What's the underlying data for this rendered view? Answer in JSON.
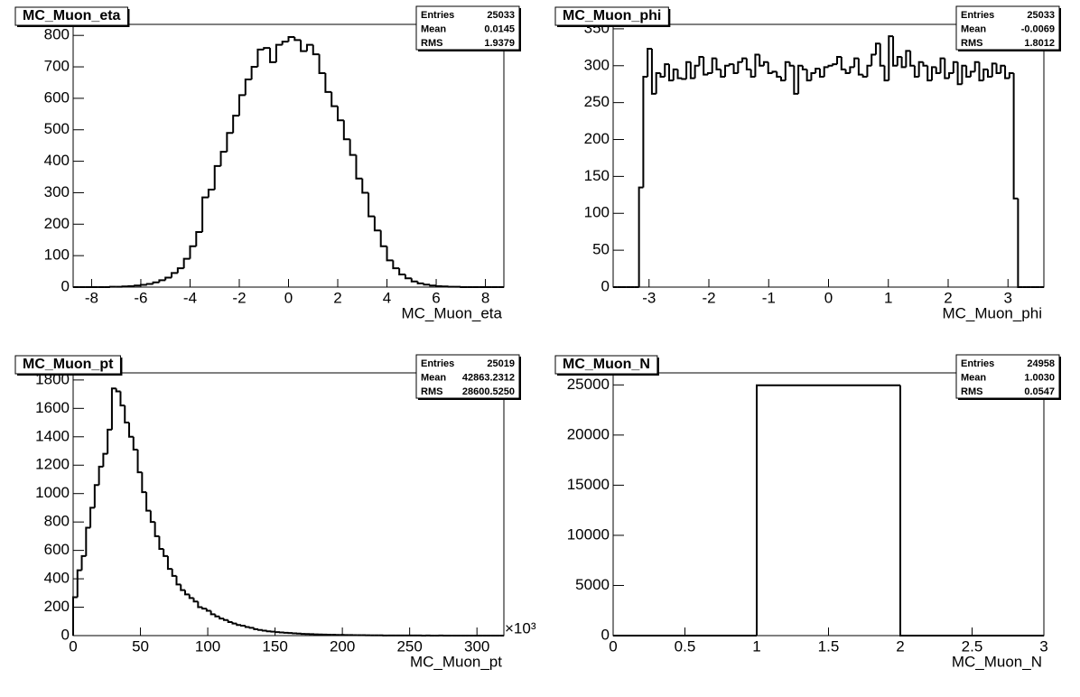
{
  "chart_data": [
    {
      "type": "histogram",
      "title": "MC_Muon_eta",
      "x_label": "MC_Muon_eta",
      "color": "#000000",
      "stats": [
        {
          "label": "Entries",
          "value": "25033"
        },
        {
          "label": "Mean",
          "value": "0.0145"
        },
        {
          "label": "RMS",
          "value": "1.9379"
        }
      ],
      "xlim": [
        -8.75,
        8.75
      ],
      "ylim": [
        0,
        835
      ],
      "xticks": [
        -8,
        -6,
        -4,
        -2,
        0,
        2,
        4,
        6,
        8
      ],
      "yticks": [
        0,
        100,
        200,
        300,
        400,
        500,
        600,
        700,
        800
      ],
      "bins": [
        -8.75,
        -8.5,
        -8.25,
        -8,
        -7.75,
        -7.5,
        -7.25,
        -7,
        -6.75,
        -6.5,
        -6.25,
        -6,
        -5.75,
        -5.5,
        -5.25,
        -5,
        -4.75,
        -4.5,
        -4.25,
        -4,
        -3.75,
        -3.5,
        -3.25,
        -3,
        -2.75,
        -2.5,
        -2.25,
        -2,
        -1.75,
        -1.5,
        -1.25,
        -1,
        -0.75,
        -0.5,
        -0.25,
        0,
        0.25,
        0.5,
        0.75,
        1,
        1.25,
        1.5,
        1.75,
        2,
        2.25,
        2.5,
        2.75,
        3,
        3.25,
        3.5,
        3.75,
        4,
        4.25,
        4.5,
        4.75,
        5,
        5.25,
        5.5,
        5.75,
        6,
        6.25,
        6.5,
        6.75,
        7,
        7.25,
        7.5,
        7.75,
        8,
        8.25,
        8.5,
        8.75
      ],
      "values": [
        0,
        0,
        0,
        0,
        0,
        0,
        1,
        1,
        2,
        3,
        5,
        7,
        10,
        15,
        22,
        30,
        45,
        60,
        90,
        130,
        175,
        285,
        310,
        385,
        430,
        490,
        545,
        610,
        660,
        700,
        755,
        760,
        715,
        770,
        780,
        795,
        785,
        750,
        770,
        740,
        680,
        620,
        575,
        530,
        470,
        420,
        345,
        300,
        225,
        180,
        130,
        85,
        60,
        40,
        28,
        18,
        12,
        8,
        5,
        3,
        2,
        1,
        1,
        0,
        0,
        0,
        0,
        0,
        0,
        0
      ]
    },
    {
      "type": "histogram",
      "title": "MC_Muon_phi",
      "x_label": "MC_Muon_phi",
      "color": "#000000",
      "stats": [
        {
          "label": "Entries",
          "value": "25033"
        },
        {
          "label": "Mean",
          "value": "-0.0069"
        },
        {
          "label": "RMS",
          "value": "1.8012"
        }
      ],
      "xlim": [
        -3.6,
        3.6
      ],
      "ylim": [
        0,
        356
      ],
      "xticks": [
        -3,
        -2,
        -1,
        0,
        1,
        2,
        3
      ],
      "yticks": [
        0,
        50,
        100,
        150,
        200,
        250,
        300,
        350
      ],
      "bins": [
        -3.6,
        -3.528,
        -3.456,
        -3.384,
        -3.312,
        -3.24,
        -3.168,
        -3.096,
        -3.024,
        -2.952,
        -2.88,
        -2.808,
        -2.736,
        -2.664,
        -2.592,
        -2.52,
        -2.448,
        -2.376,
        -2.304,
        -2.232,
        -2.16,
        -2.088,
        -2.016,
        -1.944,
        -1.872,
        -1.8,
        -1.728,
        -1.656,
        -1.584,
        -1.512,
        -1.44,
        -1.368,
        -1.296,
        -1.224,
        -1.152,
        -1.08,
        -1.008,
        -0.936,
        -0.864,
        -0.792,
        -0.72,
        -0.648,
        -0.576,
        -0.504,
        -0.432,
        -0.36,
        -0.288,
        -0.216,
        -0.144,
        -0.072,
        0,
        0.072,
        0.144,
        0.216,
        0.288,
        0.36,
        0.432,
        0.504,
        0.576,
        0.648,
        0.72,
        0.792,
        0.864,
        0.936,
        1.008,
        1.08,
        1.152,
        1.224,
        1.296,
        1.368,
        1.44,
        1.512,
        1.584,
        1.656,
        1.728,
        1.8,
        1.872,
        1.944,
        2.016,
        2.088,
        2.16,
        2.232,
        2.304,
        2.376,
        2.448,
        2.52,
        2.592,
        2.664,
        2.736,
        2.808,
        2.88,
        2.952,
        3.024,
        3.096,
        3.168,
        3.24,
        3.312,
        3.384,
        3.456,
        3.528,
        3.6
      ],
      "values": [
        0,
        0,
        0,
        0,
        0,
        0,
        135,
        285,
        323,
        262,
        290,
        285,
        302,
        280,
        295,
        283,
        282,
        305,
        283,
        300,
        312,
        288,
        290,
        310,
        295,
        285,
        300,
        302,
        290,
        305,
        310,
        295,
        285,
        315,
        300,
        305,
        290,
        292,
        285,
        280,
        305,
        300,
        262,
        300,
        295,
        280,
        290,
        296,
        285,
        298,
        300,
        302,
        312,
        295,
        290,
        298,
        310,
        288,
        285,
        300,
        315,
        330,
        300,
        280,
        340,
        300,
        312,
        298,
        320,
        300,
        285,
        305,
        300,
        280,
        298,
        290,
        310,
        283,
        290,
        305,
        275,
        300,
        285,
        292,
        305,
        280,
        295,
        285,
        303,
        290,
        300,
        283,
        290,
        120,
        0,
        0,
        0,
        0,
        0,
        0
      ]
    },
    {
      "type": "histogram",
      "title": "MC_Muon_pt",
      "x_label": "MC_Muon_pt",
      "x_multiplier": "×10³",
      "color": "#000000",
      "stats": [
        {
          "label": "Entries",
          "value": "25019"
        },
        {
          "label": "Mean",
          "value": "42863.2312"
        },
        {
          "label": "RMS",
          "value": "28600.5250"
        }
      ],
      "xlim": [
        0,
        320
      ],
      "ylim": [
        0,
        1850
      ],
      "xticks": [
        0,
        50,
        100,
        150,
        200,
        250,
        300
      ],
      "yticks": [
        0,
        200,
        400,
        600,
        800,
        1000,
        1200,
        1400,
        1600,
        1800
      ],
      "bins": [
        0,
        3.2,
        6.4,
        9.6,
        12.8,
        16,
        19.2,
        22.4,
        25.6,
        28.8,
        32,
        35.2,
        38.4,
        41.6,
        44.8,
        48,
        51.2,
        54.4,
        57.6,
        60.8,
        64,
        67.2,
        70.4,
        73.6,
        76.8,
        80,
        83.2,
        86.4,
        89.6,
        92.8,
        96,
        99.2,
        102.4,
        105.6,
        108.8,
        112,
        115.2,
        118.4,
        121.6,
        124.8,
        128,
        131.2,
        134.4,
        137.6,
        140.8,
        144,
        147.2,
        150.4,
        153.6,
        156.8,
        160,
        163.2,
        166.4,
        169.6,
        172.8,
        176,
        179.2,
        182.4,
        185.6,
        188.8,
        192,
        195.2,
        198.4,
        201.6,
        204.8,
        208,
        211.2,
        214.4,
        217.6,
        220.8,
        224,
        227.2,
        230.4,
        233.6,
        236.8,
        240,
        243.2,
        246.4,
        249.6,
        252.8,
        256,
        259.2,
        262.4,
        265.6,
        268.8,
        272,
        275.2,
        278.4,
        281.6,
        284.8,
        288,
        291.2,
        294.4,
        297.6,
        300.8,
        304,
        307.2,
        310.4,
        313.6,
        316.8,
        320
      ],
      "values": [
        270,
        460,
        560,
        760,
        900,
        1060,
        1190,
        1280,
        1450,
        1740,
        1720,
        1620,
        1500,
        1400,
        1310,
        1150,
        1010,
        880,
        800,
        700,
        610,
        560,
        470,
        420,
        360,
        320,
        290,
        265,
        240,
        200,
        190,
        175,
        150,
        135,
        120,
        110,
        95,
        85,
        75,
        70,
        60,
        55,
        45,
        40,
        35,
        30,
        28,
        25,
        22,
        20,
        18,
        16,
        14,
        12,
        11,
        10,
        9,
        8,
        7,
        6,
        6,
        5,
        5,
        4,
        4,
        3,
        3,
        3,
        2,
        2,
        2,
        2,
        1,
        1,
        1,
        1,
        1,
        1,
        1,
        1,
        1,
        0,
        1,
        0,
        0,
        1,
        0,
        0,
        0,
        0,
        0,
        0,
        0,
        0,
        0,
        0,
        0,
        0,
        0,
        0
      ]
    },
    {
      "type": "histogram",
      "title": "MC_Muon_N",
      "x_label": "MC_Muon_N",
      "color": "#000000",
      "stats": [
        {
          "label": "Entries",
          "value": "24958"
        },
        {
          "label": "Mean",
          "value": "1.0030"
        },
        {
          "label": "RMS",
          "value": "0.0547"
        }
      ],
      "xlim": [
        0,
        3
      ],
      "ylim": [
        0,
        26200
      ],
      "xticks": [
        0,
        0.5,
        1,
        1.5,
        2,
        2.5,
        3
      ],
      "yticks": [
        0,
        5000,
        10000,
        15000,
        20000,
        25000
      ],
      "bins": [
        0,
        1,
        2,
        3
      ],
      "values": [
        0,
        24958,
        0
      ]
    }
  ]
}
